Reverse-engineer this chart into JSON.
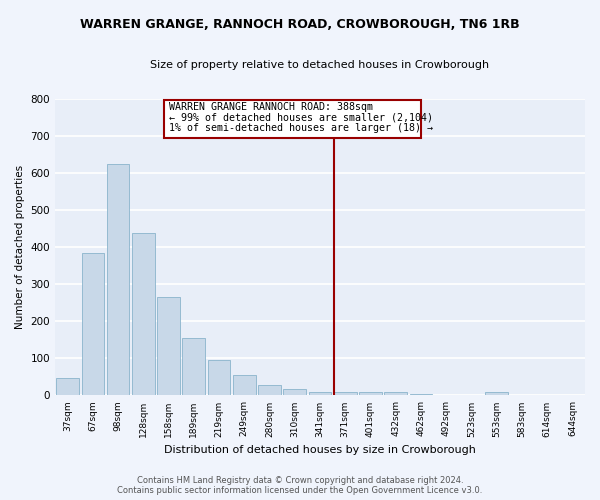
{
  "title": "WARREN GRANGE, RANNOCH ROAD, CROWBOROUGH, TN6 1RB",
  "subtitle": "Size of property relative to detached houses in Crowborough",
  "xlabel": "Distribution of detached houses by size in Crowborough",
  "ylabel": "Number of detached properties",
  "categories": [
    "37sqm",
    "67sqm",
    "98sqm",
    "128sqm",
    "158sqm",
    "189sqm",
    "219sqm",
    "249sqm",
    "280sqm",
    "310sqm",
    "341sqm",
    "371sqm",
    "401sqm",
    "432sqm",
    "462sqm",
    "492sqm",
    "523sqm",
    "553sqm",
    "583sqm",
    "614sqm",
    "644sqm"
  ],
  "values": [
    47,
    383,
    623,
    437,
    265,
    155,
    96,
    56,
    27,
    16,
    10,
    10,
    10,
    10,
    5,
    0,
    0,
    8,
    0,
    0,
    0
  ],
  "bar_color": "#c8d8e8",
  "bar_edge_color": "#8ab4cc",
  "background_color": "#e8eef8",
  "grid_color": "#ffffff",
  "vline_x_index": 11,
  "vline_color": "#990000",
  "annotation_text_line1": "WARREN GRANGE RANNOCH ROAD: 388sqm",
  "annotation_text_line2": "← 99% of detached houses are smaller (2,104)",
  "annotation_text_line3": "1% of semi-detached houses are larger (18) →",
  "annotation_box_color": "#990000",
  "ylim": [
    0,
    800
  ],
  "yticks": [
    0,
    100,
    200,
    300,
    400,
    500,
    600,
    700,
    800
  ],
  "fig_bg_color": "#f0f4fc",
  "footer_line1": "Contains HM Land Registry data © Crown copyright and database right 2024.",
  "footer_line2": "Contains public sector information licensed under the Open Government Licence v3.0."
}
